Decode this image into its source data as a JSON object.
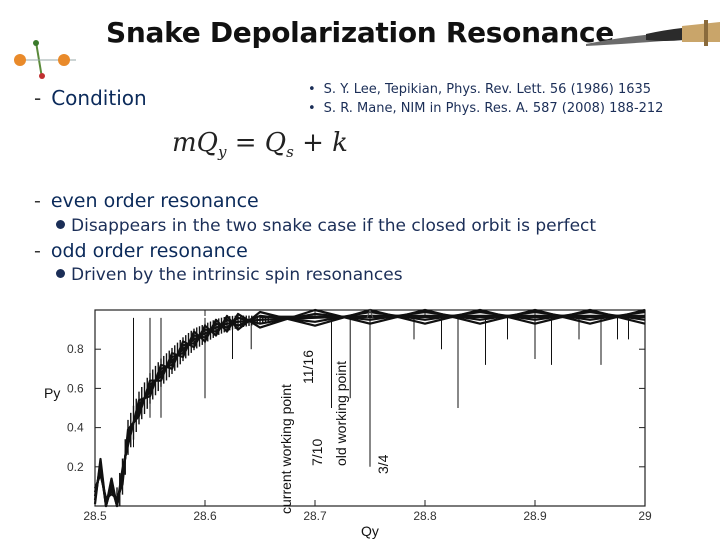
{
  "slide": {
    "title": "Snake Depolarization Resonance",
    "condition_label": "Condition",
    "references": [
      "S. Y. Lee, Tepikian, Phys. Rev. Lett. 56 (1986) 1635",
      "S. R. Mane, NIM in Phys. Res. A. 587 (2008) 188-212"
    ],
    "formula": {
      "m": "m",
      "Q": "Q",
      "y_sub": "y",
      "eq": " = ",
      "Q2": "Q",
      "s_sub": "s",
      "plus_k": " + k"
    },
    "bullets": [
      {
        "heading": "even order resonance",
        "detail": "Disappears in the two snake case if the closed orbit is perfect"
      },
      {
        "heading": "odd order resonance",
        "detail": "Driven by the intrinsic spin resonances"
      }
    ],
    "dash": "-",
    "ref_bullet": "•"
  },
  "chart_data": {
    "type": "line",
    "xlabel": "Qy",
    "ylabel": "Py",
    "xlim": [
      28.5,
      29.0
    ],
    "ylim": [
      0.0,
      1.0
    ],
    "x_ticks": [
      "28.5",
      "28.6",
      "28.7",
      "28.8",
      "28.9",
      "29"
    ],
    "y_ticks": [
      "0.2",
      "0.4",
      "0.6",
      "0.8"
    ],
    "annotations": [
      {
        "text": "current working point",
        "x": 28.69
      },
      {
        "text": "11/16",
        "x": 28.6875
      },
      {
        "text": "7/10",
        "x": 28.7
      },
      {
        "text": "old working point",
        "x": 28.73
      },
      {
        "text": "3/4",
        "x": 28.75
      }
    ],
    "series": [
      {
        "x": [
          28.5,
          28.505,
          28.51,
          28.515,
          28.52,
          28.525,
          28.53,
          28.54,
          28.55,
          28.56,
          28.57,
          28.58,
          28.59,
          28.6,
          28.61,
          28.62,
          28.63,
          28.65,
          28.7,
          28.75,
          28.8,
          28.85,
          28.9,
          28.95,
          29.0
        ],
        "values": [
          0.05,
          0.2,
          0.0,
          0.1,
          0.0,
          0.15,
          0.35,
          0.5,
          0.6,
          0.68,
          0.74,
          0.8,
          0.85,
          0.88,
          0.91,
          0.93,
          0.94,
          0.95,
          0.96,
          0.97,
          0.97,
          0.97,
          0.97,
          0.97,
          0.97
        ]
      }
    ],
    "spikes": [
      {
        "x": 28.535,
        "y": 0.3
      },
      {
        "x": 28.55,
        "y": 0.45
      },
      {
        "x": 28.56,
        "y": 0.45
      },
      {
        "x": 28.6,
        "y": 0.55
      },
      {
        "x": 28.625,
        "y": 0.75
      },
      {
        "x": 28.642,
        "y": 0.8
      },
      {
        "x": 28.715,
        "y": 0.5
      },
      {
        "x": 28.732,
        "y": 0.55
      },
      {
        "x": 28.75,
        "y": 0.2
      },
      {
        "x": 28.79,
        "y": 0.85
      },
      {
        "x": 28.815,
        "y": 0.8
      },
      {
        "x": 28.83,
        "y": 0.5
      },
      {
        "x": 28.855,
        "y": 0.72
      },
      {
        "x": 28.875,
        "y": 0.85
      },
      {
        "x": 28.9,
        "y": 0.75
      },
      {
        "x": 28.915,
        "y": 0.72
      },
      {
        "x": 28.94,
        "y": 0.85
      },
      {
        "x": 28.96,
        "y": 0.72
      },
      {
        "x": 28.975,
        "y": 0.85
      },
      {
        "x": 28.985,
        "y": 0.85
      }
    ],
    "marker_x": 28.75,
    "colors": {
      "line": "#111111",
      "axis": "#222222"
    }
  }
}
